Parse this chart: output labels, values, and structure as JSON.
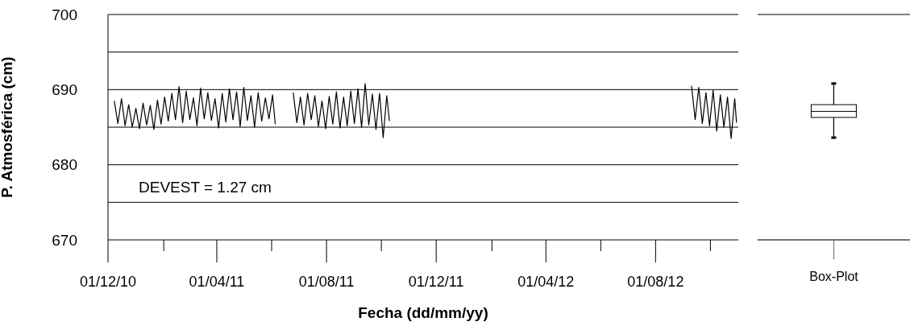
{
  "chart_data": [
    {
      "type": "line",
      "xlabel": "Fecha (dd/mm/yy)",
      "ylabel": "P. Atmosférica (cm)",
      "annotations": [
        "DEVEST = 1.27 cm"
      ],
      "x": [
        "2010-12-08",
        "2010-12-12",
        "2010-12-16",
        "2010-12-20",
        "2010-12-24",
        "2010-12-28",
        "2011-01-01",
        "2011-01-05",
        "2011-01-09",
        "2011-01-13",
        "2011-01-17",
        "2011-01-21",
        "2011-01-25",
        "2011-01-29",
        "2011-02-02",
        "2011-02-06",
        "2011-02-10",
        "2011-02-14",
        "2011-02-18",
        "2011-02-22",
        "2011-02-26",
        "2011-03-02",
        "2011-03-06",
        "2011-03-10",
        "2011-03-14",
        "2011-03-18",
        "2011-03-22",
        "2011-03-26",
        "2011-03-30",
        "2011-04-03",
        "2011-04-07",
        "2011-04-11",
        "2011-04-15",
        "2011-04-19",
        "2011-04-23",
        "2011-04-27",
        "2011-05-01",
        "2011-05-05",
        "2011-05-09",
        "2011-05-13",
        "2011-05-17",
        "2011-05-21",
        "2011-05-25",
        "2011-05-29",
        "2011-06-02",
        "2011-06-05",
        "2011-06-15",
        "2011-06-25",
        "2011-06-29",
        "2011-07-03",
        "2011-07-07",
        "2011-07-11",
        "2011-07-15",
        "2011-07-19",
        "2011-07-23",
        "2011-07-27",
        "2011-07-31",
        "2011-08-04",
        "2011-08-08",
        "2011-08-12",
        "2011-08-16",
        "2011-08-20",
        "2011-08-24",
        "2011-08-28",
        "2011-09-01",
        "2011-09-05",
        "2011-09-09",
        "2011-09-13",
        "2011-09-17",
        "2011-09-21",
        "2011-09-25",
        "2011-09-29",
        "2011-10-03",
        "2011-10-07",
        "2011-10-10",
        "2012-01-01",
        "2012-09-10",
        "2012-09-14",
        "2012-09-18",
        "2012-09-22",
        "2012-09-26",
        "2012-09-30",
        "2012-10-04",
        "2012-10-08",
        "2012-10-12",
        "2012-10-16",
        "2012-10-20",
        "2012-10-24",
        "2012-10-28",
        "2012-10-30"
      ],
      "values": [
        688.5,
        685.5,
        688.8,
        685.2,
        688.0,
        685.0,
        687.5,
        684.8,
        688.2,
        685.3,
        687.9,
        684.7,
        688.6,
        685.4,
        689.0,
        685.8,
        689.5,
        686.0,
        690.4,
        685.6,
        689.8,
        686.0,
        688.9,
        685.2,
        690.2,
        686.1,
        689.6,
        685.9,
        688.8,
        684.9,
        689.5,
        685.7,
        690.1,
        686.0,
        689.7,
        685.1,
        690.3,
        685.9,
        689.2,
        685.0,
        689.6,
        685.8,
        688.9,
        686.1,
        689.3,
        685.4,
        null,
        689.6,
        685.6,
        689.0,
        685.3,
        689.5,
        686.0,
        689.2,
        685.1,
        688.5,
        684.8,
        689.1,
        685.4,
        689.7,
        684.9,
        689.0,
        685.2,
        689.8,
        685.5,
        690.1,
        685.0,
        690.8,
        685.3,
        689.4,
        684.7,
        689.5,
        683.6,
        689.2,
        685.8,
        null,
        690.5,
        686.0,
        690.3,
        685.5,
        689.6,
        685.2,
        689.9,
        684.5,
        689.3,
        685.0,
        689.0,
        683.5,
        688.8,
        685.6
      ],
      "color": "#000000",
      "marker": "none",
      "grid": "y",
      "xlim": [
        "2010-12-01",
        "2012-11-01"
      ],
      "xticks": [
        {
          "value": "2010-12-01",
          "label": "01/12/10"
        },
        {
          "value": "2011-02-01",
          "label": null
        },
        {
          "value": "2011-04-01",
          "label": "01/04/11"
        },
        {
          "value": "2011-06-01",
          "label": null
        },
        {
          "value": "2011-08-01",
          "label": "01/08/11"
        },
        {
          "value": "2011-10-01",
          "label": null
        },
        {
          "value": "2011-12-01",
          "label": "01/12/11"
        },
        {
          "value": "2012-02-01",
          "label": null
        },
        {
          "value": "2012-04-01",
          "label": "01/04/12"
        },
        {
          "value": "2012-06-01",
          "label": null
        },
        {
          "value": "2012-08-01",
          "label": "01/08/12"
        },
        {
          "value": "2012-10-01",
          "label": null
        }
      ],
      "ylim": [
        670,
        700
      ],
      "yticks": [
        670,
        {
          "value": 675,
          "label": null
        },
        680,
        {
          "value": 685,
          "label": null
        },
        690,
        {
          "value": 695,
          "label": null
        },
        700
      ]
    },
    {
      "type": "box",
      "categories": [
        "Box-Plot"
      ],
      "color": "#000000",
      "boxes": [
        {
          "low": 683.6,
          "q1": 686.3,
          "median": 687.1,
          "q3": 688.0,
          "high": 690.8
        }
      ],
      "ylim": [
        670,
        700
      ],
      "yticks": [
        670,
        700
      ],
      "grid": "y",
      "tick_labels": "x"
    }
  ]
}
